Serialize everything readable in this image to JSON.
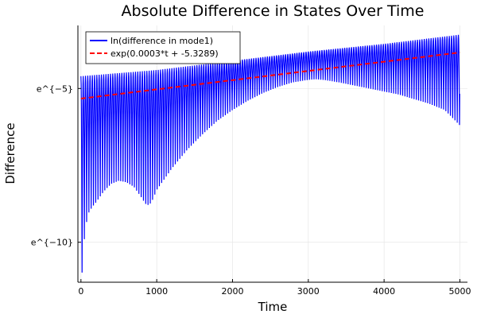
{
  "chart_data": {
    "type": "line",
    "title": "Absolute Difference in States Over Time",
    "xlabel": "Time",
    "ylabel": "Difference",
    "xlim": [
      -40,
      5100
    ],
    "ylim": [
      -11.3,
      -2.95
    ],
    "xticks": [
      {
        "value": 0,
        "label": "0"
      },
      {
        "value": 1000,
        "label": "1000"
      },
      {
        "value": 2000,
        "label": "2000"
      },
      {
        "value": 3000,
        "label": "3000"
      },
      {
        "value": 4000,
        "label": "4000"
      },
      {
        "value": 5000,
        "label": "5000"
      }
    ],
    "yticks": [
      {
        "value": -5,
        "label": "e^{−5}"
      },
      {
        "value": -10,
        "label": "e^{−10}"
      }
    ],
    "grid": true,
    "legend_position": "top-left",
    "series": [
      {
        "name": "ln(difference in mode1)",
        "color": "#0000ff",
        "style": "solid",
        "kind": "oscillation",
        "period": 30,
        "upper_envelope": {
          "x": [
            0,
            1000,
            2000,
            3000,
            4000,
            5000
          ],
          "y": [
            -4.6,
            -4.4,
            -4.1,
            -3.8,
            -3.55,
            -3.25
          ]
        },
        "lower_envelope": {
          "x": [
            0,
            20,
            40,
            70,
            100,
            150,
            200,
            300,
            400,
            500,
            600,
            700,
            800,
            850,
            900,
            950,
            1000,
            1100,
            1200,
            1400,
            1600,
            1800,
            2000,
            2200,
            2400,
            2600,
            2800,
            3000,
            3100,
            3200,
            3400,
            3600,
            3800,
            4000,
            4200,
            4400,
            4600,
            4800,
            5000
          ],
          "y": [
            -10.5,
            -11.15,
            -10.0,
            -9.4,
            -9.05,
            -8.85,
            -8.7,
            -8.35,
            -8.1,
            -8.0,
            -8.05,
            -8.2,
            -8.55,
            -8.75,
            -8.8,
            -8.6,
            -8.3,
            -7.95,
            -7.6,
            -7.0,
            -6.5,
            -6.05,
            -5.7,
            -5.4,
            -5.15,
            -4.95,
            -4.8,
            -4.72,
            -4.7,
            -4.72,
            -4.8,
            -4.9,
            -5.0,
            -5.1,
            -5.2,
            -5.35,
            -5.5,
            -5.7,
            -6.2
          ]
        }
      },
      {
        "name": "exp(0.0003*t + -5.3289)",
        "color": "#ff0000",
        "style": "dashed",
        "kind": "linear",
        "intercept": -5.3289,
        "slope": 0.0003
      }
    ]
  }
}
